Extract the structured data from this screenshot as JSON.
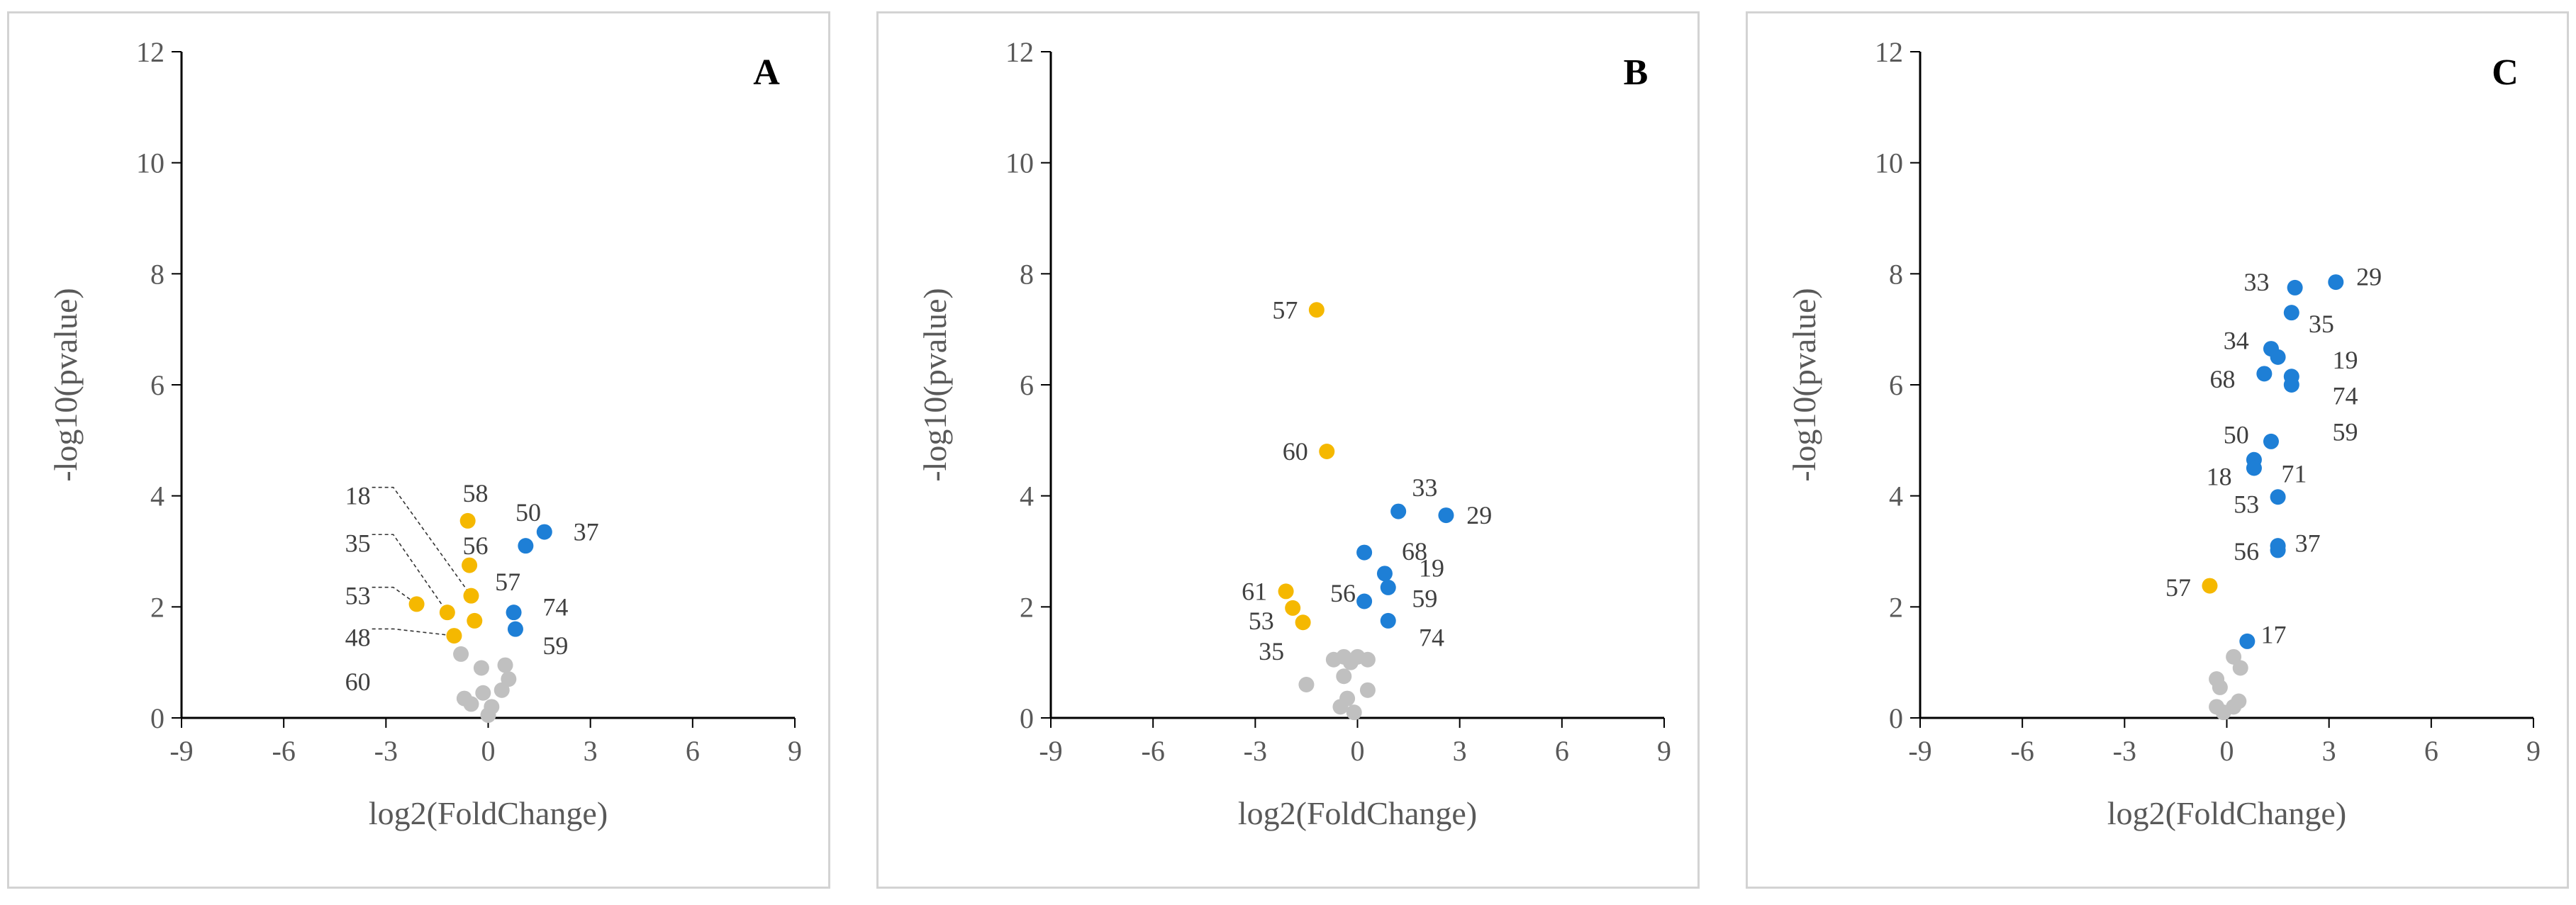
{
  "colors": {
    "up": "#1e7fd6",
    "down": "#f5b800",
    "ns": "#c0c0c0",
    "axis": "#000000"
  },
  "chart_data": [
    {
      "type": "scatter",
      "panel_letter": "A",
      "xlabel": "log2(FoldChange)",
      "ylabel": "-log10(pvalue)",
      "xlim": [
        -9,
        9
      ],
      "ylim": [
        0,
        12
      ],
      "xticks": [
        "-9",
        "-6",
        "-3",
        "0",
        "3",
        "6",
        "9"
      ],
      "yticks": [
        "0",
        "2",
        "4",
        "6",
        "8",
        "10",
        "12"
      ],
      "points": [
        {
          "x": -0.6,
          "y": 3.55,
          "group": "down",
          "label": "58",
          "lx": -0.75,
          "ly": 4.05
        },
        {
          "x": -0.55,
          "y": 2.75,
          "group": "down",
          "label": "56",
          "lx": -0.75,
          "ly": 3.1
        },
        {
          "x": -0.5,
          "y": 2.2,
          "group": "down",
          "label": "18",
          "lx": -4.2,
          "ly": 4.0
        },
        {
          "x": -2.1,
          "y": 2.05,
          "group": "down",
          "label": "53",
          "lx": -4.2,
          "ly": 2.2
        },
        {
          "x": -1.2,
          "y": 1.9,
          "group": "down",
          "label": "35",
          "lx": -4.2,
          "ly": 3.15
        },
        {
          "x": -0.4,
          "y": 1.75,
          "group": "down",
          "label": "57",
          "lx": 0.2,
          "ly": 2.45
        },
        {
          "x": -1.0,
          "y": 1.48,
          "group": "down",
          "label": "48",
          "lx": -4.2,
          "ly": 1.45
        },
        {
          "x": 1.65,
          "y": 3.35,
          "group": "up",
          "label": "37",
          "lx": 2.5,
          "ly": 3.35
        },
        {
          "x": 1.1,
          "y": 3.1,
          "group": "up",
          "label": "50",
          "lx": 0.8,
          "ly": 3.7
        },
        {
          "x": 0.75,
          "y": 1.9,
          "group": "up",
          "label": "74",
          "lx": 1.6,
          "ly": 2.0
        },
        {
          "x": 0.8,
          "y": 1.6,
          "group": "up",
          "label": "59",
          "lx": 1.6,
          "ly": 1.3
        },
        {
          "x": -0.8,
          "y": 1.15,
          "group": "ns"
        },
        {
          "x": -0.2,
          "y": 0.9,
          "group": "ns"
        },
        {
          "x": 0.5,
          "y": 0.95,
          "group": "ns"
        },
        {
          "x": 0.6,
          "y": 0.7,
          "group": "ns"
        },
        {
          "x": -0.7,
          "y": 0.35,
          "group": "ns"
        },
        {
          "x": -0.5,
          "y": 0.25,
          "group": "ns"
        },
        {
          "x": -0.15,
          "y": 0.45,
          "group": "ns"
        },
        {
          "x": 0.4,
          "y": 0.5,
          "group": "ns"
        },
        {
          "x": 0.0,
          "y": 0.05,
          "group": "ns"
        },
        {
          "x": 0.1,
          "y": 0.2,
          "group": "ns"
        }
      ],
      "extra_labels": [
        {
          "text": "60",
          "lx": -4.2,
          "ly": 0.65
        }
      ]
    },
    {
      "type": "scatter",
      "panel_letter": "B",
      "xlabel": "log2(FoldChange)",
      "ylabel": "-log10(pvalue)",
      "xlim": [
        -9,
        9
      ],
      "ylim": [
        0,
        12
      ],
      "xticks": [
        "-9",
        "-6",
        "-3",
        "0",
        "3",
        "6",
        "9"
      ],
      "yticks": [
        "0",
        "2",
        "4",
        "6",
        "8",
        "10",
        "12"
      ],
      "points": [
        {
          "x": -1.2,
          "y": 7.35,
          "group": "down",
          "label": "57",
          "lx": -2.5,
          "ly": 7.35
        },
        {
          "x": -0.9,
          "y": 4.8,
          "group": "down",
          "label": "60",
          "lx": -2.2,
          "ly": 4.8
        },
        {
          "x": -2.1,
          "y": 2.28,
          "group": "down",
          "label": "61",
          "lx": -3.4,
          "ly": 2.28
        },
        {
          "x": -1.9,
          "y": 1.98,
          "group": "down",
          "label": "53"
        },
        {
          "x": -1.6,
          "y": 1.72,
          "group": "down",
          "label": "35"
        },
        {
          "x": 1.2,
          "y": 3.72,
          "group": "up",
          "label": "33",
          "lx": 1.6,
          "ly": 4.15
        },
        {
          "x": 2.6,
          "y": 3.65,
          "group": "up",
          "label": "29",
          "lx": 3.2,
          "ly": 3.65
        },
        {
          "x": 0.2,
          "y": 2.98,
          "group": "up",
          "label": "68",
          "lx": 1.3,
          "ly": 3.0
        },
        {
          "x": 0.8,
          "y": 2.6,
          "group": "up",
          "label": "19",
          "lx": 1.8,
          "ly": 2.7
        },
        {
          "x": 0.9,
          "y": 2.35,
          "group": "up"
        },
        {
          "x": 0.2,
          "y": 2.1,
          "group": "up",
          "label": "56",
          "lx": -0.8,
          "ly": 2.25
        },
        {
          "x": 0.9,
          "y": 1.75,
          "group": "up",
          "label": "74",
          "lx": 1.8,
          "ly": 1.45
        },
        {
          "x": -0.4,
          "y": 1.1,
          "group": "ns"
        },
        {
          "x": -0.7,
          "y": 1.05,
          "group": "ns"
        },
        {
          "x": -0.2,
          "y": 1.0,
          "group": "ns"
        },
        {
          "x": 0.0,
          "y": 1.1,
          "group": "ns"
        },
        {
          "x": 0.3,
          "y": 1.05,
          "group": "ns"
        },
        {
          "x": -0.4,
          "y": 0.75,
          "group": "ns"
        },
        {
          "x": -1.5,
          "y": 0.6,
          "group": "ns"
        },
        {
          "x": 0.3,
          "y": 0.5,
          "group": "ns"
        },
        {
          "x": -0.3,
          "y": 0.35,
          "group": "ns"
        },
        {
          "x": -0.5,
          "y": 0.2,
          "group": "ns"
        },
        {
          "x": -0.1,
          "y": 0.1,
          "group": "ns"
        }
      ],
      "extra_labels": [
        {
          "text": "59",
          "lx": 1.6,
          "ly": 2.15
        },
        {
          "text": "53",
          "lx": -3.2,
          "ly": 1.75
        },
        {
          "text": "35",
          "lx": -2.9,
          "ly": 1.2
        }
      ]
    },
    {
      "type": "scatter",
      "panel_letter": "C",
      "xlabel": "log2(FoldChange)",
      "ylabel": "-log10(pvalue)",
      "xlim": [
        -9,
        9
      ],
      "ylim": [
        0,
        12
      ],
      "xticks": [
        "-9",
        "-6",
        "-3",
        "0",
        "3",
        "6",
        "9"
      ],
      "yticks": [
        "0",
        "2",
        "4",
        "6",
        "8",
        "10",
        "12"
      ],
      "points": [
        {
          "x": 3.2,
          "y": 7.85,
          "group": "up",
          "label": "29",
          "lx": 3.8,
          "ly": 7.95
        },
        {
          "x": 2.0,
          "y": 7.75,
          "group": "up",
          "label": "33",
          "lx": 0.5,
          "ly": 7.85
        },
        {
          "x": 1.9,
          "y": 7.3,
          "group": "up",
          "label": "35",
          "lx": 2.4,
          "ly": 7.1
        },
        {
          "x": 1.3,
          "y": 6.65,
          "group": "up",
          "label": "34",
          "lx": -0.1,
          "ly": 6.8
        },
        {
          "x": 1.5,
          "y": 6.5,
          "group": "up",
          "label": "19",
          "lx": 3.1,
          "ly": 6.45
        },
        {
          "x": 1.1,
          "y": 6.2,
          "group": "up",
          "label": "68",
          "lx": -0.5,
          "ly": 6.1
        },
        {
          "x": 1.9,
          "y": 6.15,
          "group": "up",
          "label": "74",
          "lx": 3.1,
          "ly": 5.8
        },
        {
          "x": 1.9,
          "y": 6.0,
          "group": "up",
          "label": "59",
          "lx": 3.1,
          "ly": 5.15
        },
        {
          "x": 1.3,
          "y": 4.98,
          "group": "up",
          "label": "50",
          "lx": -0.1,
          "ly": 5.1
        },
        {
          "x": 0.8,
          "y": 4.65,
          "group": "up",
          "label": "71",
          "lx": 1.6,
          "ly": 4.4
        },
        {
          "x": 0.8,
          "y": 4.5,
          "group": "up",
          "label": "18",
          "lx": -0.6,
          "ly": 4.35
        },
        {
          "x": 1.5,
          "y": 3.98,
          "group": "up",
          "label": "53",
          "lx": 0.2,
          "ly": 3.85
        },
        {
          "x": 1.5,
          "y": 3.1,
          "group": "up",
          "label": "37",
          "lx": 2.0,
          "ly": 3.15
        },
        {
          "x": 1.5,
          "y": 3.02,
          "group": "up",
          "label": "56",
          "lx": 0.2,
          "ly": 3.0
        },
        {
          "x": -0.5,
          "y": 2.38,
          "group": "down",
          "label": "57",
          "lx": -1.8,
          "ly": 2.35
        },
        {
          "x": 0.6,
          "y": 1.38,
          "group": "up",
          "label": "17",
          "lx": 1.0,
          "ly": 1.5
        },
        {
          "x": 0.2,
          "y": 1.1,
          "group": "ns"
        },
        {
          "x": 0.4,
          "y": 0.9,
          "group": "ns"
        },
        {
          "x": -0.3,
          "y": 0.7,
          "group": "ns"
        },
        {
          "x": -0.2,
          "y": 0.55,
          "group": "ns"
        },
        {
          "x": 0.35,
          "y": 0.3,
          "group": "ns"
        },
        {
          "x": 0.2,
          "y": 0.2,
          "group": "ns"
        },
        {
          "x": -0.3,
          "y": 0.2,
          "group": "ns"
        },
        {
          "x": -0.1,
          "y": 0.1,
          "group": "ns"
        }
      ],
      "extra_labels": []
    }
  ]
}
